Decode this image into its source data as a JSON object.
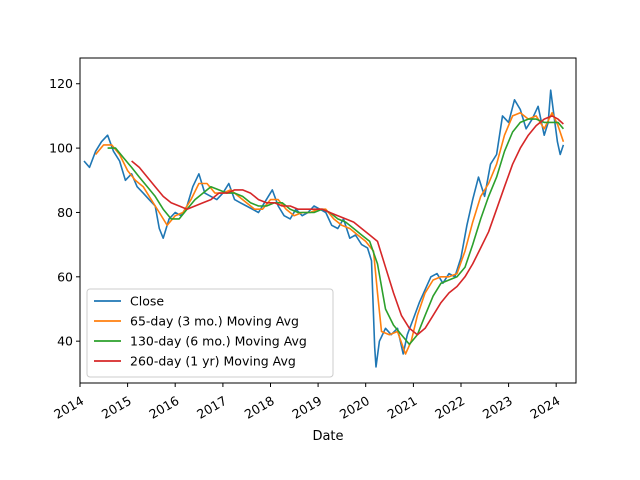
{
  "chart_data": {
    "type": "line",
    "title": "",
    "xlabel": "Date",
    "ylabel": "",
    "xlim": [
      "2014-01-01",
      "2024-06-01"
    ],
    "ylim": [
      27,
      128
    ],
    "x_ticks": [
      "2014",
      "2015",
      "2016",
      "2017",
      "2018",
      "2019",
      "2020",
      "2021",
      "2022",
      "2023",
      "2024"
    ],
    "y_ticks": [
      40,
      60,
      80,
      100,
      120
    ],
    "grid": false,
    "legend_position": "lower-left",
    "series": [
      {
        "name": "Close",
        "color": "#1f77b4",
        "points": [
          [
            "2014-02-01",
            96
          ],
          [
            "2014-03-15",
            94
          ],
          [
            "2014-05-01",
            99
          ],
          [
            "2014-06-15",
            102
          ],
          [
            "2014-08-01",
            104
          ],
          [
            "2014-09-15",
            99
          ],
          [
            "2014-11-01",
            96
          ],
          [
            "2014-12-15",
            90
          ],
          [
            "2015-02-01",
            92
          ],
          [
            "2015-03-15",
            88
          ],
          [
            "2015-05-01",
            86
          ],
          [
            "2015-06-15",
            84
          ],
          [
            "2015-08-01",
            82
          ],
          [
            "2015-09-01",
            75
          ],
          [
            "2015-10-01",
            72
          ],
          [
            "2015-11-15",
            78
          ],
          [
            "2016-01-01",
            80
          ],
          [
            "2016-02-15",
            79
          ],
          [
            "2016-04-01",
            82
          ],
          [
            "2016-05-15",
            88
          ],
          [
            "2016-07-01",
            92
          ],
          [
            "2016-08-15",
            86
          ],
          [
            "2016-10-01",
            85
          ],
          [
            "2016-11-15",
            84
          ],
          [
            "2017-01-01",
            86
          ],
          [
            "2017-02-15",
            89
          ],
          [
            "2017-04-01",
            84
          ],
          [
            "2017-05-15",
            83
          ],
          [
            "2017-07-01",
            82
          ],
          [
            "2017-08-15",
            81
          ],
          [
            "2017-10-01",
            80
          ],
          [
            "2017-11-15",
            83
          ],
          [
            "2018-01-15",
            87
          ],
          [
            "2018-03-01",
            82
          ],
          [
            "2018-04-15",
            79
          ],
          [
            "2018-06-01",
            78
          ],
          [
            "2018-07-15",
            81
          ],
          [
            "2018-09-01",
            79
          ],
          [
            "2018-10-15",
            80
          ],
          [
            "2018-12-01",
            82
          ],
          [
            "2019-01-15",
            81
          ],
          [
            "2019-03-01",
            80
          ],
          [
            "2019-04-15",
            76
          ],
          [
            "2019-06-01",
            75
          ],
          [
            "2019-07-15",
            78
          ],
          [
            "2019-09-01",
            72
          ],
          [
            "2019-10-15",
            73
          ],
          [
            "2019-12-01",
            70
          ],
          [
            "2020-01-15",
            69
          ],
          [
            "2020-02-15",
            65
          ],
          [
            "2020-03-10",
            38
          ],
          [
            "2020-03-20",
            32
          ],
          [
            "2020-04-15",
            40
          ],
          [
            "2020-06-01",
            44
          ],
          [
            "2020-07-15",
            42
          ],
          [
            "2020-09-01",
            44
          ],
          [
            "2020-10-15",
            36
          ],
          [
            "2020-11-15",
            42
          ],
          [
            "2021-01-01",
            47
          ],
          [
            "2021-02-15",
            52
          ],
          [
            "2021-04-01",
            56
          ],
          [
            "2021-05-15",
            60
          ],
          [
            "2021-07-01",
            61
          ],
          [
            "2021-08-15",
            58
          ],
          [
            "2021-10-01",
            61
          ],
          [
            "2021-11-15",
            60
          ],
          [
            "2022-01-01",
            66
          ],
          [
            "2022-02-15",
            76
          ],
          [
            "2022-04-01",
            84
          ],
          [
            "2022-05-15",
            91
          ],
          [
            "2022-07-01",
            85
          ],
          [
            "2022-08-15",
            95
          ],
          [
            "2022-10-01",
            98
          ],
          [
            "2022-11-15",
            110
          ],
          [
            "2023-01-01",
            108
          ],
          [
            "2023-02-15",
            115
          ],
          [
            "2023-04-01",
            112
          ],
          [
            "2023-05-15",
            106
          ],
          [
            "2023-07-01",
            109
          ],
          [
            "2023-08-15",
            113
          ],
          [
            "2023-10-01",
            104
          ],
          [
            "2023-11-01",
            108
          ],
          [
            "2023-11-20",
            118
          ],
          [
            "2023-12-15",
            110
          ],
          [
            "2024-01-10",
            102
          ],
          [
            "2024-02-01",
            98
          ],
          [
            "2024-02-25",
            101
          ]
        ]
      },
      {
        "name": "65-day (3 mo.) Moving Avg",
        "color": "#ff7f0e",
        "points": [
          [
            "2014-05-01",
            98
          ],
          [
            "2014-07-01",
            101
          ],
          [
            "2014-09-01",
            101
          ],
          [
            "2014-11-01",
            98
          ],
          [
            "2015-01-01",
            93
          ],
          [
            "2015-03-01",
            90
          ],
          [
            "2015-05-01",
            88
          ],
          [
            "2015-07-01",
            84
          ],
          [
            "2015-09-01",
            80
          ],
          [
            "2015-11-01",
            76
          ],
          [
            "2016-01-01",
            79
          ],
          [
            "2016-03-01",
            80
          ],
          [
            "2016-05-01",
            84
          ],
          [
            "2016-07-01",
            89
          ],
          [
            "2016-09-01",
            89
          ],
          [
            "2016-11-01",
            86
          ],
          [
            "2017-01-01",
            86
          ],
          [
            "2017-03-01",
            87
          ],
          [
            "2017-05-01",
            85
          ],
          [
            "2017-07-01",
            83
          ],
          [
            "2017-09-01",
            81
          ],
          [
            "2017-11-01",
            81
          ],
          [
            "2018-01-01",
            84
          ],
          [
            "2018-03-01",
            84
          ],
          [
            "2018-05-01",
            81
          ],
          [
            "2018-07-01",
            79
          ],
          [
            "2018-09-01",
            80
          ],
          [
            "2018-11-01",
            80
          ],
          [
            "2019-01-01",
            81
          ],
          [
            "2019-03-01",
            81
          ],
          [
            "2019-05-01",
            78
          ],
          [
            "2019-07-01",
            76
          ],
          [
            "2019-09-01",
            75
          ],
          [
            "2019-11-01",
            73
          ],
          [
            "2020-01-01",
            71
          ],
          [
            "2020-03-01",
            68
          ],
          [
            "2020-04-01",
            55
          ],
          [
            "2020-05-01",
            43
          ],
          [
            "2020-07-01",
            42
          ],
          [
            "2020-09-01",
            43
          ],
          [
            "2020-11-01",
            36
          ],
          [
            "2020-12-15",
            40
          ],
          [
            "2021-02-01",
            48
          ],
          [
            "2021-04-01",
            55
          ],
          [
            "2021-06-01",
            59
          ],
          [
            "2021-08-01",
            60
          ],
          [
            "2021-10-01",
            60
          ],
          [
            "2021-12-01",
            61
          ],
          [
            "2022-02-01",
            68
          ],
          [
            "2022-04-01",
            77
          ],
          [
            "2022-06-01",
            85
          ],
          [
            "2022-08-01",
            89
          ],
          [
            "2022-10-01",
            95
          ],
          [
            "2022-12-01",
            104
          ],
          [
            "2023-02-01",
            110
          ],
          [
            "2023-04-01",
            111
          ],
          [
            "2023-06-01",
            109
          ],
          [
            "2023-08-01",
            110
          ],
          [
            "2023-10-01",
            106
          ],
          [
            "2023-12-01",
            111
          ],
          [
            "2024-01-15",
            107
          ],
          [
            "2024-02-25",
            102
          ]
        ]
      },
      {
        "name": "130-day (6 mo.) Moving Avg",
        "color": "#2ca02c",
        "points": [
          [
            "2014-08-01",
            100
          ],
          [
            "2014-10-01",
            100
          ],
          [
            "2014-12-01",
            97
          ],
          [
            "2015-02-01",
            94
          ],
          [
            "2015-04-01",
            91
          ],
          [
            "2015-06-01",
            88
          ],
          [
            "2015-08-01",
            85
          ],
          [
            "2015-10-01",
            81
          ],
          [
            "2015-12-01",
            78
          ],
          [
            "2016-02-01",
            78
          ],
          [
            "2016-04-01",
            81
          ],
          [
            "2016-06-01",
            84
          ],
          [
            "2016-08-01",
            86
          ],
          [
            "2016-10-01",
            88
          ],
          [
            "2016-12-01",
            87
          ],
          [
            "2017-02-01",
            86
          ],
          [
            "2017-04-01",
            86
          ],
          [
            "2017-06-01",
            85
          ],
          [
            "2017-08-01",
            83
          ],
          [
            "2017-10-01",
            82
          ],
          [
            "2017-12-01",
            82
          ],
          [
            "2018-02-01",
            83
          ],
          [
            "2018-04-01",
            83
          ],
          [
            "2018-06-01",
            81
          ],
          [
            "2018-08-01",
            80
          ],
          [
            "2018-10-01",
            80
          ],
          [
            "2018-12-01",
            80
          ],
          [
            "2019-02-01",
            81
          ],
          [
            "2019-04-01",
            80
          ],
          [
            "2019-06-01",
            78
          ],
          [
            "2019-08-01",
            77
          ],
          [
            "2019-10-01",
            75
          ],
          [
            "2019-12-01",
            73
          ],
          [
            "2020-02-01",
            71
          ],
          [
            "2020-04-01",
            64
          ],
          [
            "2020-06-01",
            50
          ],
          [
            "2020-08-01",
            45
          ],
          [
            "2020-10-01",
            42
          ],
          [
            "2020-12-01",
            39
          ],
          [
            "2021-02-01",
            42
          ],
          [
            "2021-04-01",
            48
          ],
          [
            "2021-06-01",
            54
          ],
          [
            "2021-08-01",
            58
          ],
          [
            "2021-10-01",
            59
          ],
          [
            "2021-12-01",
            60
          ],
          [
            "2022-02-01",
            63
          ],
          [
            "2022-04-01",
            70
          ],
          [
            "2022-06-01",
            78
          ],
          [
            "2022-08-01",
            85
          ],
          [
            "2022-10-01",
            91
          ],
          [
            "2022-12-01",
            99
          ],
          [
            "2023-02-01",
            105
          ],
          [
            "2023-04-01",
            108
          ],
          [
            "2023-06-01",
            109
          ],
          [
            "2023-08-01",
            109
          ],
          [
            "2023-10-01",
            108
          ],
          [
            "2023-12-01",
            108
          ],
          [
            "2024-01-15",
            108
          ],
          [
            "2024-02-25",
            106
          ]
        ]
      },
      {
        "name": "260-day (1 yr) Moving Avg",
        "color": "#d62728",
        "points": [
          [
            "2015-02-01",
            96
          ],
          [
            "2015-04-01",
            94
          ],
          [
            "2015-06-01",
            91
          ],
          [
            "2015-08-01",
            88
          ],
          [
            "2015-10-01",
            85
          ],
          [
            "2015-12-01",
            83
          ],
          [
            "2016-02-01",
            82
          ],
          [
            "2016-04-01",
            81
          ],
          [
            "2016-06-01",
            82
          ],
          [
            "2016-08-01",
            83
          ],
          [
            "2016-10-01",
            84
          ],
          [
            "2016-12-01",
            86
          ],
          [
            "2017-02-01",
            86
          ],
          [
            "2017-04-01",
            87
          ],
          [
            "2017-06-01",
            87
          ],
          [
            "2017-08-01",
            86
          ],
          [
            "2017-10-01",
            84
          ],
          [
            "2017-12-01",
            83
          ],
          [
            "2018-02-01",
            83
          ],
          [
            "2018-04-01",
            82
          ],
          [
            "2018-06-01",
            82
          ],
          [
            "2018-08-01",
            81
          ],
          [
            "2018-10-01",
            81
          ],
          [
            "2018-12-01",
            81
          ],
          [
            "2019-02-01",
            81
          ],
          [
            "2019-04-01",
            80
          ],
          [
            "2019-06-01",
            79
          ],
          [
            "2019-08-01",
            78
          ],
          [
            "2019-10-01",
            77
          ],
          [
            "2019-12-01",
            75
          ],
          [
            "2020-02-01",
            73
          ],
          [
            "2020-04-01",
            71
          ],
          [
            "2020-06-01",
            63
          ],
          [
            "2020-08-01",
            55
          ],
          [
            "2020-10-01",
            48
          ],
          [
            "2020-12-01",
            44
          ],
          [
            "2021-02-01",
            42
          ],
          [
            "2021-04-01",
            44
          ],
          [
            "2021-06-01",
            48
          ],
          [
            "2021-08-01",
            52
          ],
          [
            "2021-10-01",
            55
          ],
          [
            "2021-12-01",
            57
          ],
          [
            "2022-02-01",
            60
          ],
          [
            "2022-04-01",
            64
          ],
          [
            "2022-06-01",
            69
          ],
          [
            "2022-08-01",
            74
          ],
          [
            "2022-10-01",
            81
          ],
          [
            "2022-12-01",
            88
          ],
          [
            "2023-02-01",
            95
          ],
          [
            "2023-04-01",
            100
          ],
          [
            "2023-06-01",
            104
          ],
          [
            "2023-08-01",
            107
          ],
          [
            "2023-10-01",
            109
          ],
          [
            "2023-12-01",
            110
          ],
          [
            "2024-01-15",
            109
          ],
          [
            "2024-02-25",
            107.5
          ]
        ]
      }
    ]
  }
}
